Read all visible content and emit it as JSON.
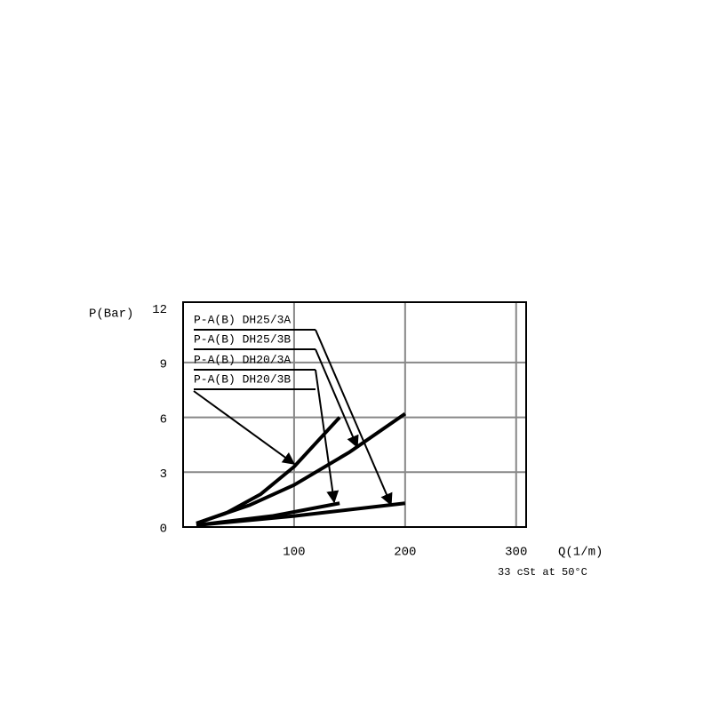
{
  "chart_data": {
    "type": "line",
    "ylabel": "P(Bar)",
    "xlabel": "Q(1/m)",
    "note": "33 cSt at 50°C",
    "xlim": [
      0,
      309
    ],
    "ylim": [
      0,
      12.3
    ],
    "xticks": [
      100,
      200,
      300
    ],
    "yticks": [
      0,
      3,
      6,
      9,
      12
    ],
    "grid": true,
    "series": [
      {
        "name": "P-A(B) DH25/3A",
        "color": "#000000",
        "x": [
          12,
          100,
          200
        ],
        "values": [
          0.1,
          0.6,
          1.3
        ]
      },
      {
        "name": "P-A(B) DH25/3B",
        "color": "#000000",
        "x": [
          12,
          60,
          100,
          150,
          200
        ],
        "values": [
          0.2,
          1.2,
          2.3,
          4.1,
          6.2
        ]
      },
      {
        "name": "P-A(B) DH20/3A",
        "color": "#000000",
        "x": [
          12,
          80,
          141
        ],
        "values": [
          0.1,
          0.6,
          1.3
        ]
      },
      {
        "name": "P-A(B) DH20/3B",
        "color": "#000000",
        "x": [
          12,
          40,
          70,
          100,
          141
        ],
        "values": [
          0.2,
          0.8,
          1.8,
          3.3,
          6
        ]
      }
    ]
  }
}
